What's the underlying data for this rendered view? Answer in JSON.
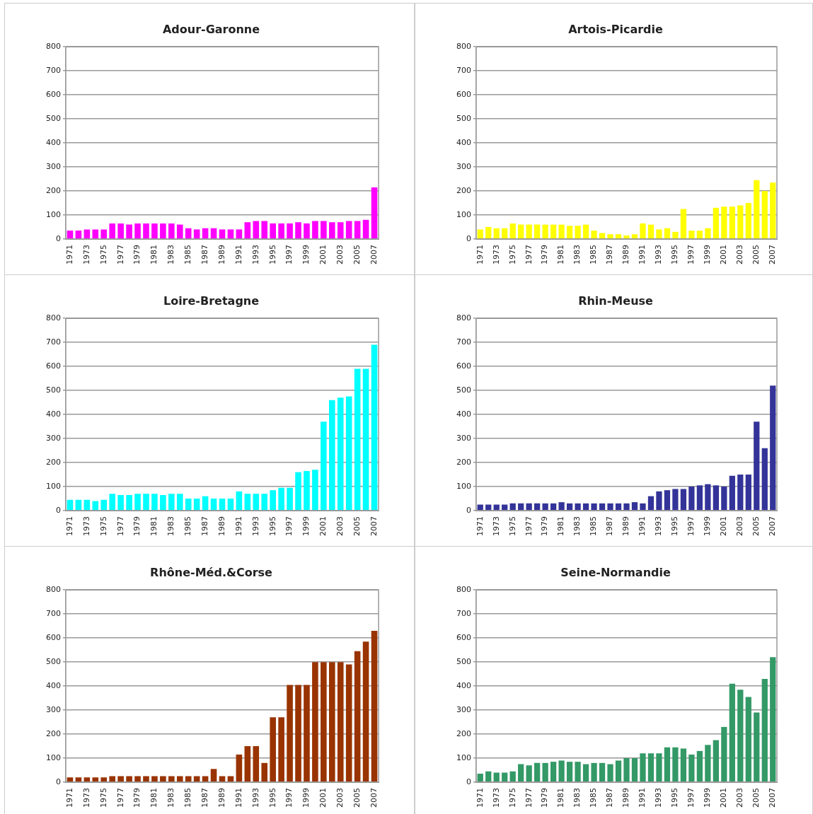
{
  "chart_data": [
    {
      "type": "bar",
      "title": "Adour-Garonne",
      "categories": [
        "1971",
        null,
        "1973",
        null,
        "1975",
        null,
        "1977",
        null,
        "1979",
        null,
        "1981",
        null,
        "1983",
        null,
        "1985",
        null,
        "1987",
        null,
        "1989",
        null,
        "1991",
        null,
        "1993",
        null,
        "1995",
        null,
        "1997",
        null,
        "1999",
        null,
        "2001",
        null,
        "2003",
        null,
        "2005",
        null,
        "2007"
      ],
      "values": [
        35,
        35,
        40,
        40,
        40,
        65,
        65,
        60,
        65,
        65,
        65,
        65,
        65,
        60,
        45,
        40,
        45,
        45,
        40,
        40,
        40,
        70,
        75,
        75,
        65,
        65,
        65,
        70,
        65,
        75,
        75,
        70,
        70,
        75,
        75,
        80,
        215
      ],
      "color": "#ff00ff",
      "ylim": [
        0,
        800
      ],
      "yticks": [
        0,
        100,
        200,
        300,
        400,
        500,
        600,
        700,
        800
      ],
      "grid": "y"
    },
    {
      "type": "bar",
      "title": "Artois-Picardie",
      "categories": [
        "1971",
        null,
        "1973",
        null,
        "1975",
        null,
        "1977",
        null,
        "1979",
        null,
        "1981",
        null,
        "1983",
        null,
        "1985",
        null,
        "1987",
        null,
        "1989",
        null,
        "1991",
        null,
        "1993",
        null,
        "1995",
        null,
        "1997",
        null,
        "1999",
        null,
        "2001",
        null,
        "2003",
        null,
        "2005",
        null,
        "2007"
      ],
      "values": [
        40,
        50,
        45,
        45,
        65,
        60,
        60,
        60,
        60,
        60,
        60,
        55,
        55,
        60,
        35,
        25,
        20,
        20,
        15,
        20,
        65,
        60,
        40,
        45,
        30,
        125,
        35,
        35,
        45,
        130,
        135,
        135,
        140,
        150,
        245,
        200,
        235
      ],
      "color": "#ffff00",
      "ylim": [
        0,
        800
      ],
      "yticks": [
        0,
        100,
        200,
        300,
        400,
        500,
        600,
        700,
        800
      ],
      "grid": "y"
    },
    {
      "type": "bar",
      "title": "Loire-Bretagne",
      "categories": [
        "1971",
        null,
        "1973",
        null,
        "1975",
        null,
        "1977",
        null,
        "1979",
        null,
        "1981",
        null,
        "1983",
        null,
        "1985",
        null,
        "1987",
        null,
        "1989",
        null,
        "1991",
        null,
        "1993",
        null,
        "1995",
        null,
        "1997",
        null,
        "1999",
        null,
        "2001",
        null,
        "2003",
        null,
        "2005",
        null,
        "2007"
      ],
      "values": [
        45,
        45,
        45,
        40,
        45,
        70,
        65,
        65,
        70,
        70,
        70,
        65,
        70,
        70,
        50,
        50,
        60,
        50,
        50,
        50,
        80,
        70,
        70,
        70,
        85,
        95,
        95,
        160,
        165,
        170,
        370,
        460,
        470,
        475,
        590,
        590,
        690
      ],
      "color": "#00ffff",
      "ylim": [
        0,
        800
      ],
      "yticks": [
        0,
        100,
        200,
        300,
        400,
        500,
        600,
        700,
        800
      ],
      "grid": "y"
    },
    {
      "type": "bar",
      "title": "Rhin-Meuse",
      "categories": [
        "1971",
        null,
        "1973",
        null,
        "1975",
        null,
        "1977",
        null,
        "1979",
        null,
        "1981",
        null,
        "1983",
        null,
        "1985",
        null,
        "1987",
        null,
        "1989",
        null,
        "1991",
        null,
        "1993",
        null,
        "1995",
        null,
        "1997",
        null,
        "1999",
        null,
        "2001",
        null,
        "2003",
        null,
        "2005",
        null,
        "2007"
      ],
      "values": [
        25,
        25,
        25,
        25,
        30,
        30,
        30,
        30,
        30,
        30,
        35,
        30,
        30,
        30,
        30,
        30,
        30,
        30,
        30,
        35,
        30,
        60,
        80,
        85,
        90,
        90,
        100,
        105,
        110,
        105,
        100,
        145,
        150,
        150,
        370,
        260,
        520
      ],
      "color": "#333399",
      "ylim": [
        0,
        800
      ],
      "yticks": [
        0,
        100,
        200,
        300,
        400,
        500,
        600,
        700,
        800
      ],
      "grid": "y"
    },
    {
      "type": "bar",
      "title": "Rhône-Méd.&Corse",
      "categories": [
        "1971",
        null,
        "1973",
        null,
        "1975",
        null,
        "1977",
        null,
        "1979",
        null,
        "1981",
        null,
        "1983",
        null,
        "1985",
        null,
        "1987",
        null,
        "1989",
        null,
        "1991",
        null,
        "1993",
        null,
        "1995",
        null,
        "1997",
        null,
        "1999",
        null,
        "2001",
        null,
        "2003",
        null,
        "2005",
        null,
        "2007"
      ],
      "values": [
        20,
        20,
        20,
        20,
        20,
        25,
        25,
        25,
        25,
        25,
        25,
        25,
        25,
        25,
        25,
        25,
        25,
        55,
        25,
        25,
        115,
        150,
        150,
        80,
        270,
        270,
        405,
        405,
        405,
        500,
        500,
        500,
        500,
        490,
        545,
        585,
        630
      ],
      "color": "#993300",
      "ylim": [
        0,
        800
      ],
      "yticks": [
        0,
        100,
        200,
        300,
        400,
        500,
        600,
        700,
        800
      ],
      "grid": "y"
    },
    {
      "type": "bar",
      "title": "Seine-Normandie",
      "categories": [
        "1971",
        null,
        "1973",
        null,
        "1975",
        null,
        "1977",
        null,
        "1979",
        null,
        "1981",
        null,
        "1983",
        null,
        "1985",
        null,
        "1987",
        null,
        "1989",
        null,
        "1991",
        null,
        "1993",
        null,
        "1995",
        null,
        "1997",
        null,
        "1999",
        null,
        "2001",
        null,
        "2003",
        null,
        "2005",
        null,
        "2007"
      ],
      "values": [
        35,
        45,
        40,
        40,
        45,
        75,
        70,
        80,
        80,
        85,
        90,
        85,
        85,
        75,
        80,
        80,
        75,
        90,
        100,
        100,
        120,
        120,
        120,
        145,
        145,
        140,
        115,
        130,
        155,
        175,
        230,
        410,
        385,
        355,
        290,
        430,
        520
      ],
      "color": "#339966",
      "ylim": [
        0,
        800
      ],
      "yticks": [
        0,
        100,
        200,
        300,
        400,
        500,
        600,
        700,
        800
      ],
      "grid": "y"
    }
  ]
}
